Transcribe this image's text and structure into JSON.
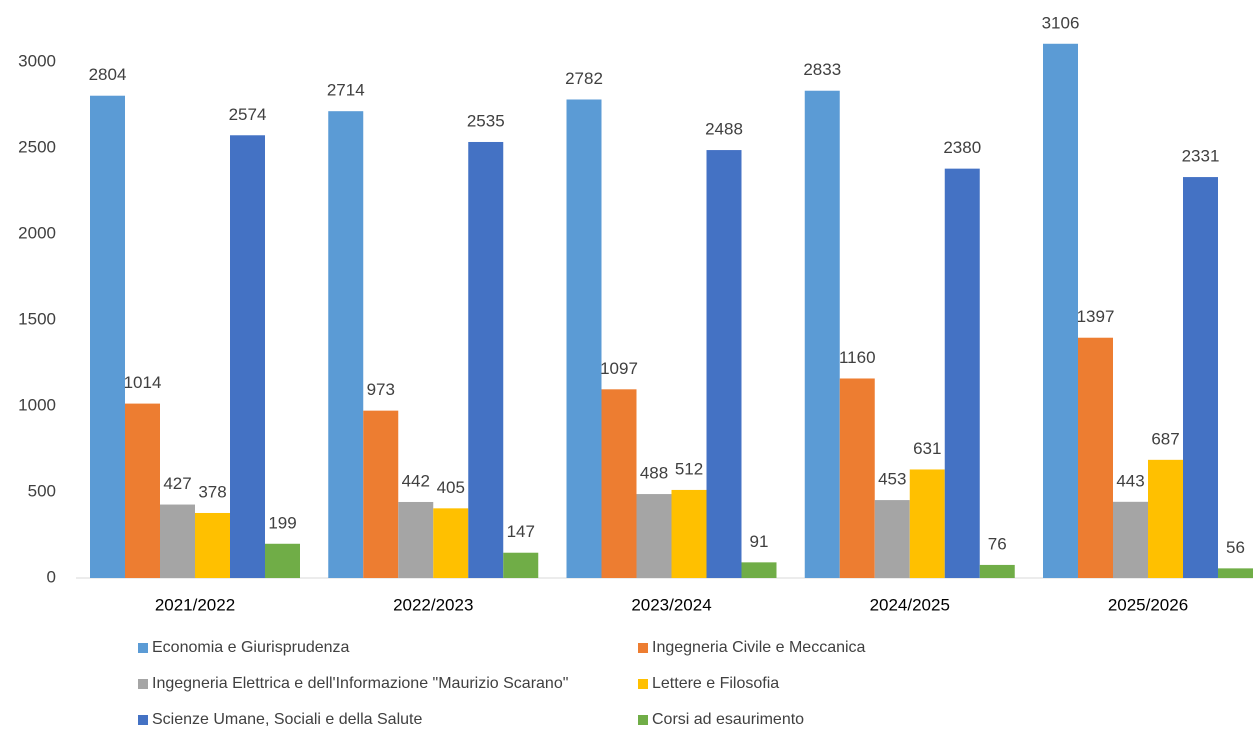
{
  "chart_data": {
    "type": "bar",
    "categories": [
      "2021/2022",
      "2022/2023",
      "2023/2024",
      "2024/2025",
      "2025/2026"
    ],
    "series": [
      {
        "name": "Economia e Giurisprudenza",
        "color": "#5b9bd5",
        "values": [
          2804,
          2714,
          2782,
          2833,
          3106
        ]
      },
      {
        "name": "Ingegneria Civile e Meccanica",
        "color": "#ed7d31",
        "values": [
          1014,
          973,
          1097,
          1160,
          1397
        ]
      },
      {
        "name": "Ingegneria Elettrica e dell'Informazione \"Maurizio Scarano\"",
        "color": "#a5a5a5",
        "values": [
          427,
          442,
          488,
          453,
          443
        ]
      },
      {
        "name": "Lettere e Filosofia",
        "color": "#ffc000",
        "values": [
          378,
          405,
          512,
          631,
          687
        ]
      },
      {
        "name": "Scienze Umane, Sociali e della Salute",
        "color": "#4472c4",
        "values": [
          2574,
          2535,
          2488,
          2380,
          2331
        ]
      },
      {
        "name": "Corsi ad esaurimento",
        "color": "#70ad47",
        "values": [
          199,
          147,
          91,
          76,
          56
        ]
      }
    ],
    "ylim": [
      0,
      3000
    ],
    "yticks": [
      0,
      500,
      1000,
      1500,
      2000,
      2500,
      3000
    ],
    "grid": false,
    "legend": "bottom"
  }
}
